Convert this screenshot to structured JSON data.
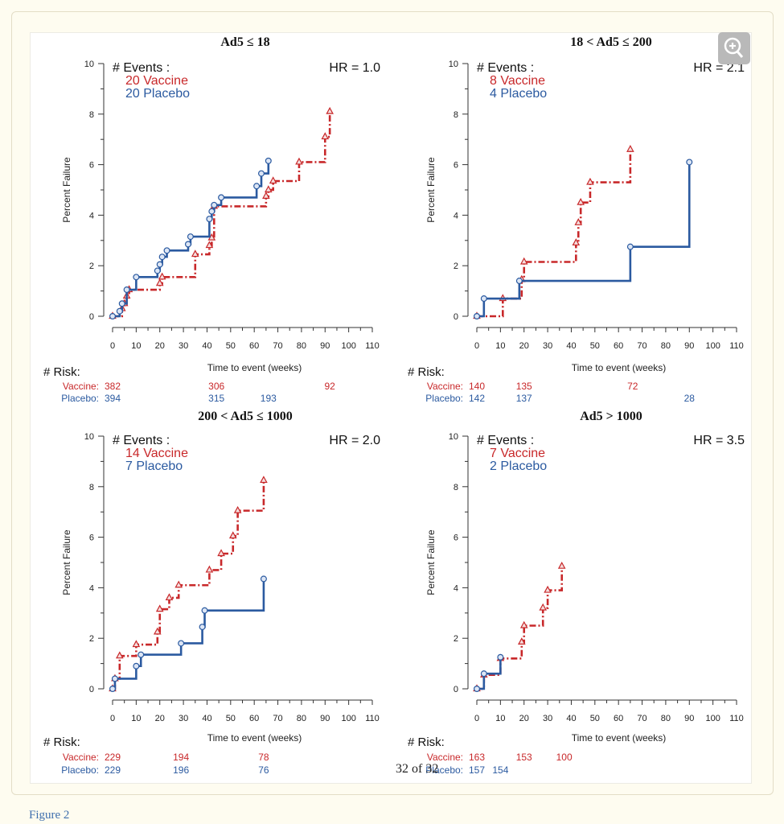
{
  "caption": "Figure 2",
  "page_number": "32 of 32",
  "zoom_icon": "zoom-in-icon",
  "colors": {
    "vaccine": "#c8282a",
    "placebo": "#2b5aa0",
    "axis": "#333333"
  },
  "chart_data": [
    {
      "type": "line",
      "title": "Ad5 ≤ 18",
      "xlabel": "Time to event (weeks)",
      "ylabel": "Percent Failure",
      "xlim": [
        0,
        110
      ],
      "ylim": [
        0,
        10
      ],
      "xticks": [
        "0",
        "10",
        "20",
        "30",
        "40",
        "50",
        "60",
        "70",
        "80",
        "90",
        "100",
        "110"
      ],
      "yticks": [
        "0",
        "2",
        "4",
        "6",
        "8",
        "10"
      ],
      "events_header": "# Events :",
      "events_vaccine": "20 Vaccine",
      "events_placebo": "20 Placebo",
      "hr": "HR = 1.0",
      "risk_header": "# Risk:",
      "risk_vaccine_label": "Vaccine:",
      "risk_placebo_label": "Placebo:",
      "risk_vaccine": [
        {
          "x": 0,
          "n": "382"
        },
        {
          "x": 44,
          "n": "306"
        },
        {
          "x": 92,
          "n": "92"
        }
      ],
      "risk_placebo": [
        {
          "x": 0,
          "n": "394"
        },
        {
          "x": 44,
          "n": "315"
        },
        {
          "x": 66,
          "n": "193"
        }
      ],
      "series": [
        {
          "name": "Vaccine",
          "style": "dashdot",
          "marker": "triangle",
          "x": [
            0,
            4,
            5,
            6,
            7,
            20,
            21,
            35,
            41,
            42,
            43,
            65,
            66,
            68,
            79,
            90,
            92
          ],
          "y": [
            0,
            0.3,
            0.5,
            0.8,
            1.05,
            1.3,
            1.55,
            2.45,
            2.8,
            3.1,
            4.35,
            4.75,
            5.0,
            5.35,
            6.1,
            7.1,
            8.1
          ]
        },
        {
          "name": "Placebo",
          "style": "solid",
          "marker": "circle",
          "x": [
            0,
            3,
            4,
            6,
            10,
            19,
            20,
            21,
            23,
            32,
            33,
            41,
            42,
            43,
            46,
            61,
            63,
            66
          ],
          "y": [
            0,
            0.2,
            0.5,
            1.05,
            1.55,
            1.8,
            2.05,
            2.35,
            2.6,
            2.85,
            3.15,
            3.85,
            4.15,
            4.4,
            4.7,
            5.15,
            5.65,
            6.15
          ]
        }
      ]
    },
    {
      "type": "line",
      "title": "18 < Ad5 ≤ 200",
      "xlabel": "Time to event (weeks)",
      "ylabel": "Percent Failure",
      "xlim": [
        0,
        110
      ],
      "ylim": [
        0,
        10
      ],
      "xticks": [
        "0",
        "10",
        "20",
        "30",
        "40",
        "50",
        "60",
        "70",
        "80",
        "90",
        "100",
        "110"
      ],
      "yticks": [
        "0",
        "2",
        "4",
        "6",
        "8",
        "10"
      ],
      "events_header": "# Events :",
      "events_vaccine": "8 Vaccine",
      "events_placebo": "4 Placebo",
      "hr": "HR = 2.1",
      "risk_header": "# Risk:",
      "risk_vaccine_label": "Vaccine:",
      "risk_placebo_label": "Placebo:",
      "risk_vaccine": [
        {
          "x": 0,
          "n": "140"
        },
        {
          "x": 20,
          "n": "135"
        },
        {
          "x": 66,
          "n": "72"
        }
      ],
      "risk_placebo": [
        {
          "x": 0,
          "n": "142"
        },
        {
          "x": 20,
          "n": "137"
        },
        {
          "x": 90,
          "n": "28"
        }
      ],
      "series": [
        {
          "name": "Vaccine",
          "style": "dashdot",
          "marker": "triangle",
          "x": [
            0,
            11,
            19,
            20,
            42,
            43,
            44,
            48,
            65
          ],
          "y": [
            0,
            0.7,
            1.45,
            2.15,
            2.9,
            3.7,
            4.5,
            5.3,
            6.6
          ]
        },
        {
          "name": "Placebo",
          "style": "solid",
          "marker": "circle",
          "x": [
            0,
            3,
            18,
            65,
            90
          ],
          "y": [
            0,
            0.7,
            1.4,
            2.75,
            6.1
          ]
        }
      ]
    },
    {
      "type": "line",
      "title": "200 < Ad5 ≤ 1000",
      "xlabel": "Time to event (weeks)",
      "ylabel": "Percent Failure",
      "xlim": [
        0,
        110
      ],
      "ylim": [
        0,
        10
      ],
      "xticks": [
        "0",
        "10",
        "20",
        "30",
        "40",
        "50",
        "60",
        "70",
        "80",
        "90",
        "100",
        "110"
      ],
      "yticks": [
        "0",
        "2",
        "4",
        "6",
        "8",
        "10"
      ],
      "events_header": "# Events :",
      "events_vaccine": "14 Vaccine",
      "events_placebo": "7 Placebo",
      "hr": "HR = 2.0",
      "risk_header": "# Risk:",
      "risk_vaccine_label": "Vaccine:",
      "risk_placebo_label": "Placebo:",
      "risk_vaccine": [
        {
          "x": 0,
          "n": "229"
        },
        {
          "x": 29,
          "n": "194"
        },
        {
          "x": 64,
          "n": "78"
        }
      ],
      "risk_placebo": [
        {
          "x": 0,
          "n": "229"
        },
        {
          "x": 29,
          "n": "196"
        },
        {
          "x": 64,
          "n": "76"
        }
      ],
      "series": [
        {
          "name": "Vaccine",
          "style": "dashdot",
          "marker": "triangle",
          "x": [
            0,
            1,
            3,
            10,
            19,
            20,
            24,
            28,
            41,
            46,
            51,
            53,
            64
          ],
          "y": [
            0,
            0.4,
            1.3,
            1.75,
            2.25,
            3.15,
            3.6,
            4.1,
            4.7,
            5.35,
            6.05,
            7.05,
            8.25
          ]
        },
        {
          "name": "Placebo",
          "style": "solid",
          "marker": "circle",
          "x": [
            0,
            1,
            10,
            12,
            29,
            38,
            39,
            64
          ],
          "y": [
            0,
            0.4,
            0.9,
            1.35,
            1.8,
            2.45,
            3.1,
            4.35
          ]
        }
      ]
    },
    {
      "type": "line",
      "title": "Ad5 > 1000",
      "xlabel": "Time to event (weeks)",
      "ylabel": "Percent Failure",
      "xlim": [
        0,
        110
      ],
      "ylim": [
        0,
        10
      ],
      "xticks": [
        "0",
        "10",
        "20",
        "30",
        "40",
        "50",
        "60",
        "70",
        "80",
        "90",
        "100",
        "110"
      ],
      "yticks": [
        "0",
        "2",
        "4",
        "6",
        "8",
        "10"
      ],
      "events_header": "# Events :",
      "events_vaccine": "7 Vaccine",
      "events_placebo": "2 Placebo",
      "hr": "HR = 3.5",
      "risk_header": "# Risk:",
      "risk_vaccine_label": "Vaccine:",
      "risk_placebo_label": "Placebo:",
      "risk_vaccine": [
        {
          "x": 0,
          "n": "163"
        },
        {
          "x": 20,
          "n": "153"
        },
        {
          "x": 37,
          "n": "100"
        }
      ],
      "risk_placebo": [
        {
          "x": 0,
          "n": "157"
        },
        {
          "x": 10,
          "n": "154"
        }
      ],
      "series": [
        {
          "name": "Vaccine",
          "style": "dashdot",
          "marker": "triangle",
          "x": [
            0,
            3,
            10,
            19,
            20,
            28,
            30,
            36
          ],
          "y": [
            0,
            0.55,
            1.2,
            1.85,
            2.5,
            3.2,
            3.9,
            4.85
          ]
        },
        {
          "name": "Placebo",
          "style": "solid",
          "marker": "circle",
          "x": [
            0,
            3,
            10
          ],
          "y": [
            0,
            0.6,
            1.25
          ]
        }
      ]
    }
  ]
}
